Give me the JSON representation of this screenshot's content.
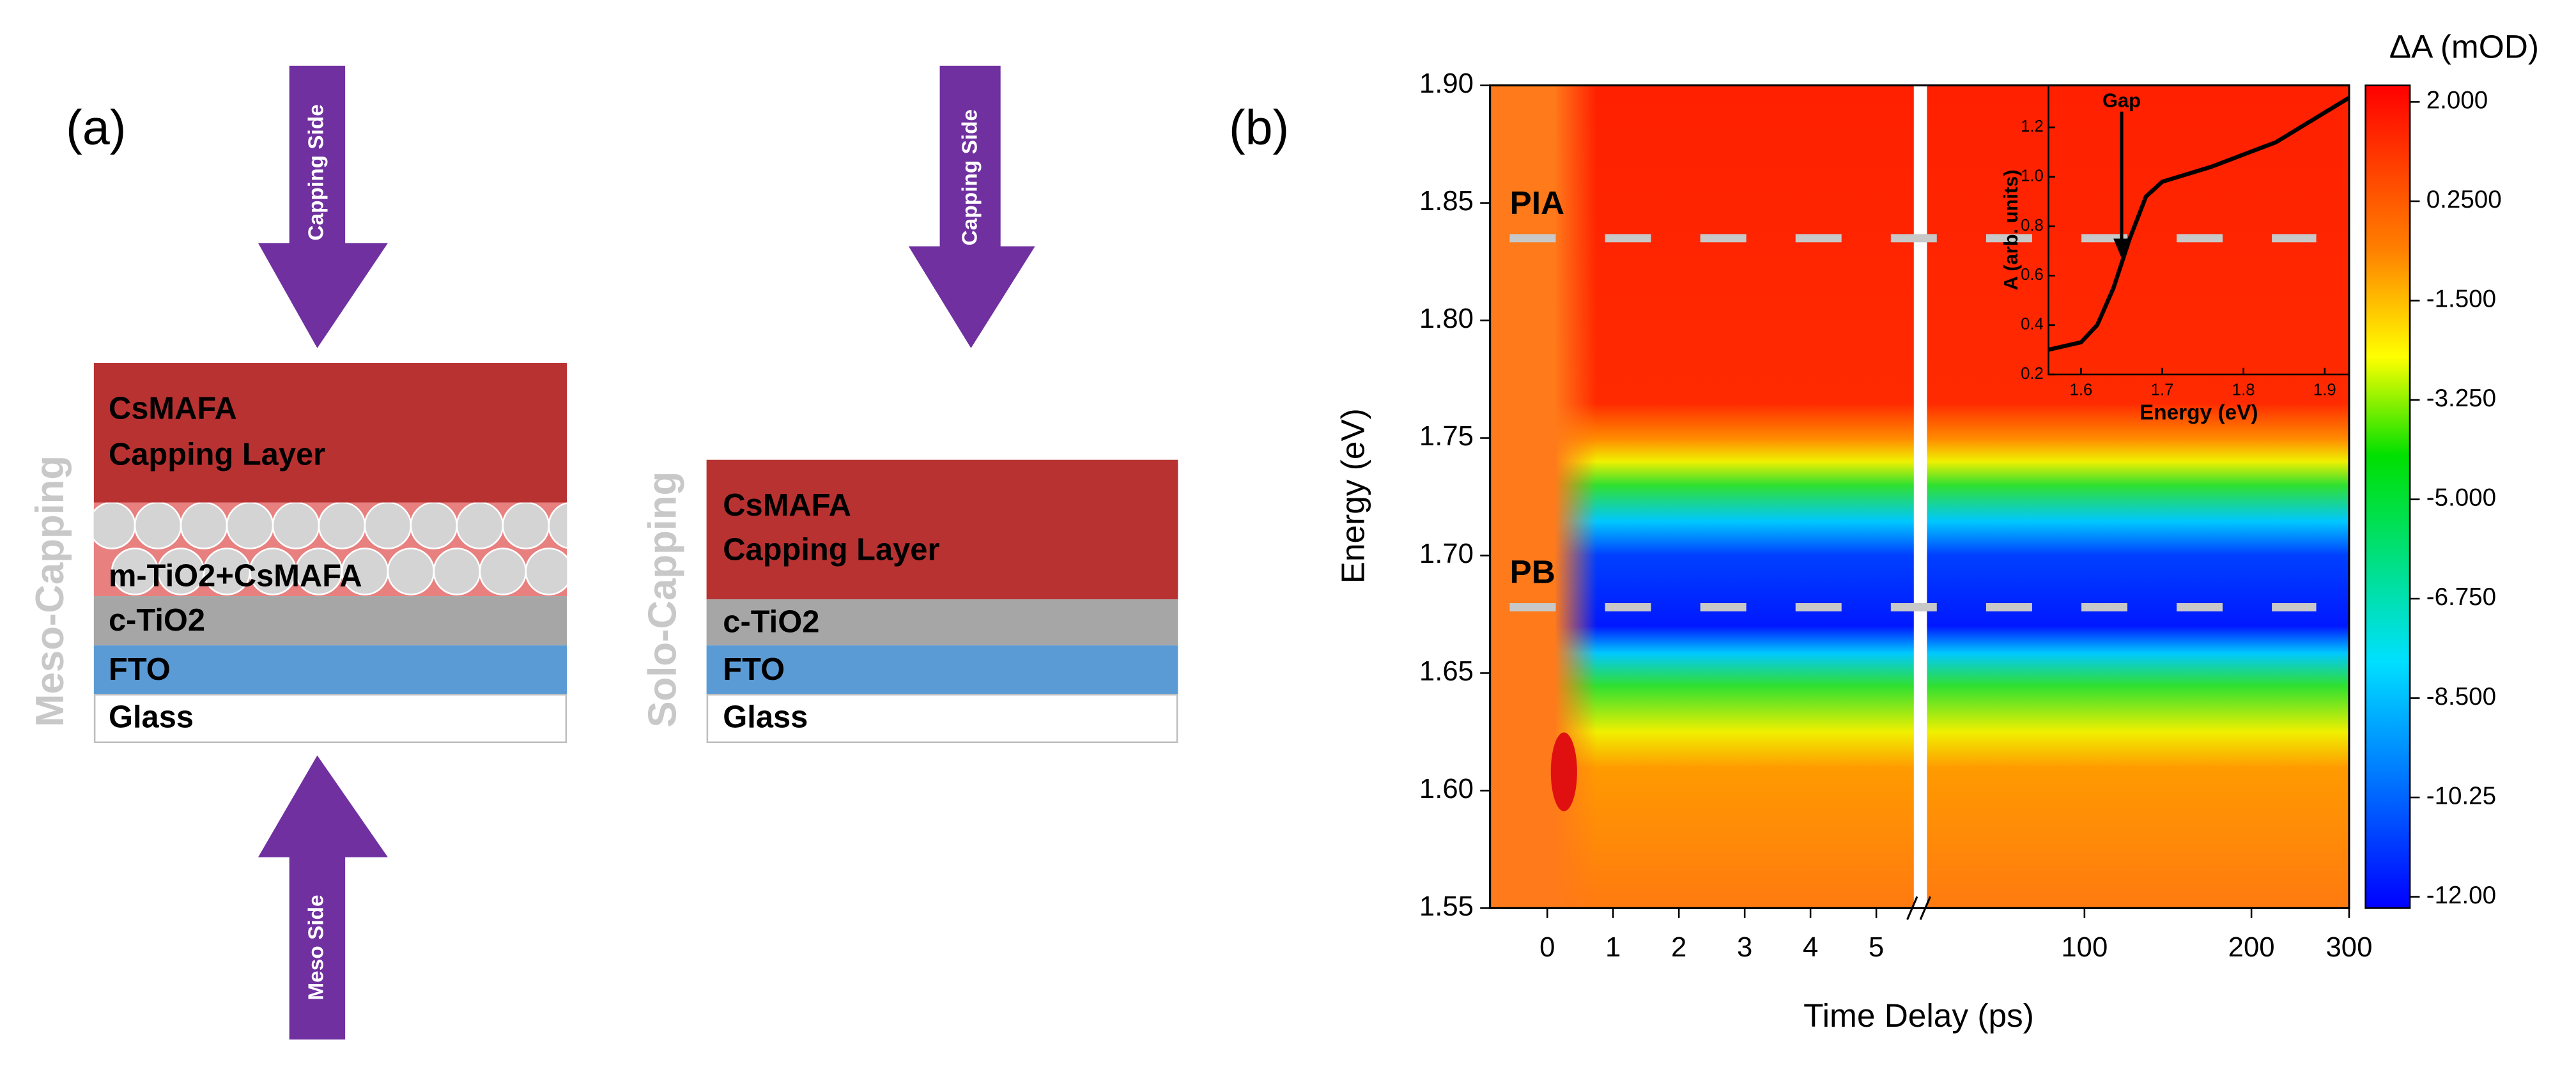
{
  "panel_a": {
    "label": "(a)",
    "meso": {
      "side_label": "Meso-Capping",
      "top_arrow": "Capping Side",
      "bottom_arrow": "Meso Side",
      "layers": [
        "CsMAFA",
        "Capping Layer",
        "m-TiO2+CsMAFA",
        "c-TiO2",
        "FTO",
        "Glass"
      ]
    },
    "solo": {
      "side_label": "Solo-Capping",
      "top_arrow": "Capping Side",
      "layers": [
        "CsMAFA",
        "Capping Layer",
        "c-TiO2",
        "FTO",
        "Glass"
      ]
    }
  },
  "chart_data": {
    "type": "heatmap",
    "label": "(b)",
    "x_label": "Time Delay (ps)",
    "y_label": "Energy (eV)",
    "colorbar_label": "ΔA (mOD)",
    "ylim": [
      1.55,
      1.9
    ],
    "yticks": [
      1.55,
      {
        "value": 1.6,
        "label": "1.60"
      },
      1.65,
      {
        "value": 1.7,
        "label": "1.70"
      },
      1.75,
      {
        "value": 1.8,
        "label": "1.80"
      },
      1.85,
      {
        "value": 1.9,
        "label": "1.90"
      }
    ],
    "x_segments": [
      {
        "xlim": [
          -0.87,
          5.57
        ],
        "xticks": [
          0,
          1,
          2,
          3,
          4,
          5
        ],
        "log": false
      },
      {
        "xlim": [
          52,
          300
        ],
        "xticks": [
          100,
          200,
          300
        ],
        "log": true
      }
    ],
    "clim": [
      -12.2,
      2.29
    ],
    "cticks": [
      {
        "value": 2,
        "label": "2.000"
      },
      {
        "value": 0.25,
        "label": "0.2500"
      },
      {
        "value": -1.5,
        "label": "-1.500"
      },
      {
        "value": -3.25,
        "label": "-3.250"
      },
      {
        "value": -5,
        "label": "-5.000"
      },
      {
        "value": -6.75,
        "label": "-6.750"
      },
      {
        "value": -8.5,
        "label": "-8.500"
      },
      {
        "value": -10.25,
        "label": "-10.25"
      },
      {
        "value": -12,
        "label": "-12.00"
      }
    ],
    "annotations": [
      {
        "text": "PIA",
        "y": 1.835
      },
      {
        "text": "PB",
        "y": 1.678
      }
    ],
    "inset": {
      "type": "line",
      "x_label": "Energy (eV)",
      "y_label": "A (arb. units)",
      "color": "#000000",
      "x": [
        1.56,
        1.6,
        1.62,
        1.64,
        1.66,
        1.68,
        1.7,
        1.72,
        1.76,
        1.8,
        1.84,
        1.88,
        1.93
      ],
      "values": [
        0.3,
        0.33,
        0.4,
        0.55,
        0.75,
        0.92,
        0.98,
        1.0,
        1.04,
        1.09,
        1.14,
        1.22,
        1.32
      ],
      "xlim": [
        1.56,
        1.93
      ],
      "xticks": [
        1.6,
        1.7,
        1.8,
        1.9
      ],
      "ylim": [
        0.2,
        1.37
      ],
      "yticks": [
        0.2,
        0.4,
        0.6,
        0.8,
        {
          "value": 1.0,
          "label": "1.0"
        },
        1.2
      ],
      "annotation": {
        "text": "Gap",
        "x": 1.65,
        "y": 0.67
      }
    }
  }
}
